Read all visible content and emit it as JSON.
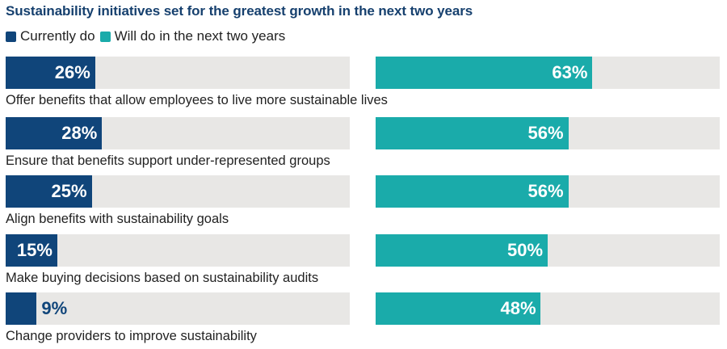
{
  "chart_data": {
    "type": "bar",
    "orientation": "horizontal",
    "title": "Sustainability initiatives set for the greatest growth in the next two years",
    "xlabel": "",
    "ylabel": "",
    "xlim": [
      0,
      100
    ],
    "grid": false,
    "legend_position": "top-left",
    "categories": [
      "Offer benefits that allow employees to live more sustainable lives",
      "Ensure that benefits support under-represented groups",
      "Align benefits with sustainability goals",
      "Make buying decisions based on sustainability audits",
      "Change providers to improve sustainability"
    ],
    "series": [
      {
        "name": "Currently do",
        "color": "#10457a",
        "values": [
          26,
          28,
          25,
          15,
          9
        ],
        "labels": [
          "26%",
          "28%",
          "25%",
          "15%",
          "9%"
        ]
      },
      {
        "name": "Will do in the next two years",
        "color": "#1aabaa",
        "values": [
          63,
          56,
          56,
          50,
          48
        ],
        "labels": [
          "63%",
          "56%",
          "56%",
          "50%",
          "48%"
        ]
      }
    ],
    "track_color": "#e8e7e5"
  }
}
